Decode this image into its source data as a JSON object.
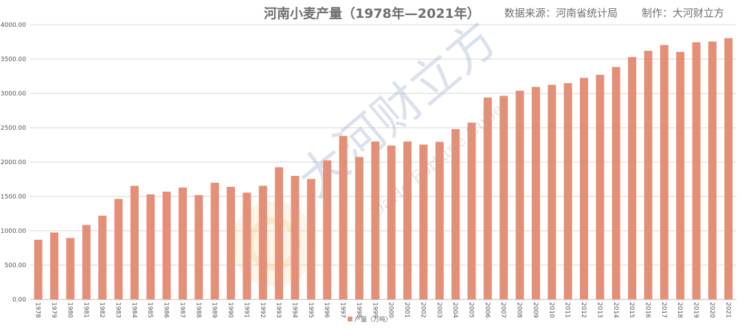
{
  "header": {
    "title": "河南小麦产量（1978年—2021年）",
    "source": "数据来源：河南省统计局",
    "credit": "制作：大河财立方"
  },
  "watermark": {
    "text_cn": "大河财立方",
    "text_en": "DaHe Fortune Cube"
  },
  "chart_data": {
    "type": "bar",
    "title": "河南小麦产量（1978年—2021年）",
    "xlabel": "",
    "ylabel": "",
    "ylim": [
      0,
      4000
    ],
    "yticks": [
      "0.00",
      "500.00",
      "1000.00",
      "1500.00",
      "2000.00",
      "2500.00",
      "3000.00",
      "3500.00",
      "4000.00"
    ],
    "grid": true,
    "legend_position": "bottom-center",
    "categories": [
      "1978",
      "1979",
      "1980",
      "1981",
      "1982",
      "1983",
      "1984",
      "1985",
      "1986",
      "1987",
      "1988",
      "1989",
      "1990",
      "1991",
      "1992",
      "1993",
      "1994",
      "1995",
      "1996",
      "1997",
      "1998",
      "1999",
      "2000",
      "2001",
      "2002",
      "2003",
      "2004",
      "2005",
      "2006",
      "2007",
      "2008",
      "2009",
      "2010",
      "2011",
      "2012",
      "2013",
      "2014",
      "2015",
      "2016",
      "2017",
      "2018",
      "2019",
      "2020",
      "2021"
    ],
    "series": [
      {
        "name": "产量（万吨）",
        "color": "#e49078",
        "values": [
          870,
          975,
          895,
          1085,
          1220,
          1465,
          1655,
          1530,
          1570,
          1630,
          1520,
          1700,
          1640,
          1555,
          1655,
          1925,
          1800,
          1755,
          2025,
          2380,
          2075,
          2300,
          2240,
          2300,
          2255,
          2295,
          2480,
          2575,
          2940,
          2965,
          3040,
          3095,
          3125,
          3150,
          3225,
          3270,
          3385,
          3530,
          3620,
          3705,
          3605,
          3745,
          3755,
          3805
        ]
      }
    ]
  }
}
